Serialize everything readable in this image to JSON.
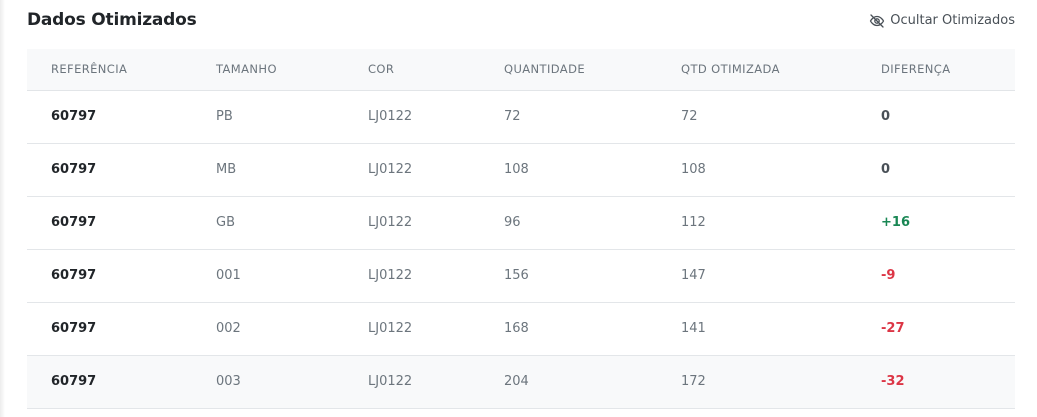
{
  "header": {
    "title": "Dados Otimizados",
    "toggle_label": "Ocultar Otimizados",
    "toggle_icon": "eye-slash-icon"
  },
  "table": {
    "columns": [
      "REFERÊNCIA",
      "TAMANHO",
      "COR",
      "QUANTIDADE",
      "QTD OTIMIZADA",
      "DIFERENÇA"
    ],
    "rows": [
      {
        "referencia": "60797",
        "tamanho": "PB",
        "cor": "LJ0122",
        "quantidade": "72",
        "qtd_otimizada": "72",
        "diferenca": "0",
        "status": "neutral"
      },
      {
        "referencia": "60797",
        "tamanho": "MB",
        "cor": "LJ0122",
        "quantidade": "108",
        "qtd_otimizada": "108",
        "diferenca": "0",
        "status": "neutral"
      },
      {
        "referencia": "60797",
        "tamanho": "GB",
        "cor": "LJ0122",
        "quantidade": "96",
        "qtd_otimizada": "112",
        "diferenca": "+16",
        "status": "positive"
      },
      {
        "referencia": "60797",
        "tamanho": "001",
        "cor": "LJ0122",
        "quantidade": "156",
        "qtd_otimizada": "147",
        "diferenca": "-9",
        "status": "negative"
      },
      {
        "referencia": "60797",
        "tamanho": "002",
        "cor": "LJ0122",
        "quantidade": "168",
        "qtd_otimizada": "141",
        "diferenca": "-27",
        "status": "negative"
      },
      {
        "referencia": "60797",
        "tamanho": "003",
        "cor": "LJ0122",
        "quantidade": "204",
        "qtd_otimizada": "172",
        "diferenca": "-32",
        "status": "negative"
      }
    ]
  },
  "colors": {
    "positive": "#198754",
    "negative": "#dc3545",
    "neutral": "#495057",
    "header_bg": "#f8f9fa"
  }
}
